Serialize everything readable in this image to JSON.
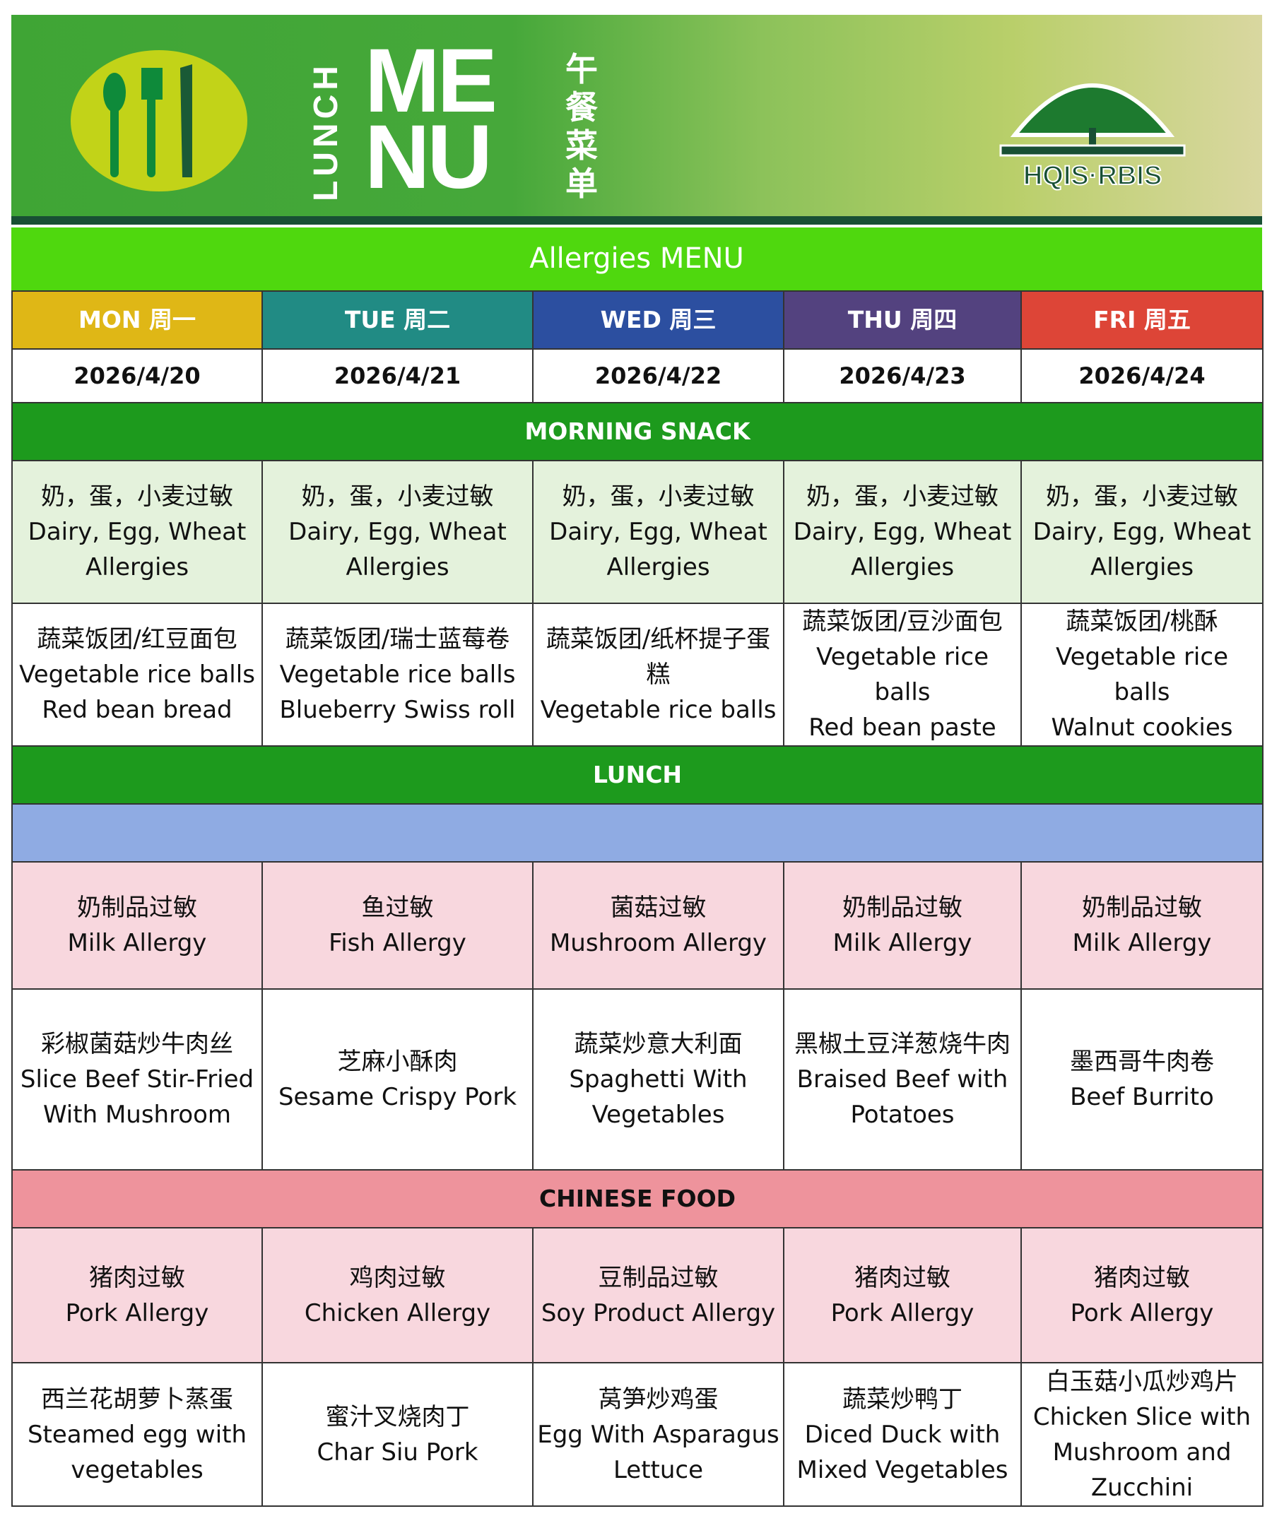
{
  "banner": {
    "lunch": "LUNCH",
    "menu_line1": "ME",
    "menu_line2": "NU",
    "chinese_title": "午餐菜单",
    "logo_text": "HQIS·RBIS"
  },
  "title": "Allergies MENU",
  "days": [
    {
      "label": "MON 周一",
      "date": "2026/4/20",
      "color": "#dfb716"
    },
    {
      "label": "TUE 周二",
      "date": "2026/4/21",
      "color": "#218b84"
    },
    {
      "label": "WED 周三",
      "date": "2026/4/22",
      "color": "#2c4fa0"
    },
    {
      "label": "THU 周四",
      "date": "2026/4/23",
      "color": "#53427f"
    },
    {
      "label": "FRI 周五",
      "date": "2026/4/24",
      "color": "#dd4537"
    }
  ],
  "morning_snack": {
    "title": "MORNING SNACK",
    "allergy": [
      "奶，蛋，小麦过敏\nDairy, Egg, Wheat Allergies",
      "奶，蛋，小麦过敏\nDairy, Egg, Wheat Allergies",
      "奶，蛋，小麦过敏\nDairy, Egg, Wheat Allergies",
      "奶，蛋，小麦过敏\nDairy, Egg, Wheat Allergies",
      "奶，蛋，小麦过敏\nDairy, Egg, Wheat Allergies"
    ],
    "food": [
      "蔬菜饭团/红豆面包\nVegetable rice balls\nRed bean bread",
      "蔬菜饭团/瑞士蓝莓卷\nVegetable rice balls\nBlueberry Swiss roll",
      "蔬菜饭团/纸杯提子蛋糕\nVegetable rice balls",
      "蔬菜饭团/豆沙面包\nVegetable rice balls\nRed bean paste",
      "蔬菜饭团/桃酥\nVegetable rice balls\nWalnut cookies"
    ]
  },
  "lunch": {
    "title": "LUNCH",
    "allergy": [
      "奶制品过敏\nMilk Allergy",
      "鱼过敏\nFish Allergy",
      "菌菇过敏\nMushroom  Allergy",
      "奶制品过敏\nMilk Allergy",
      "奶制品过敏\nMilk Allergy"
    ],
    "food": [
      "彩椒菌菇炒牛肉丝\nSlice Beef  Stir-Fried With Mushroom",
      "芝麻小酥肉\nSesame Crispy Pork",
      "蔬菜炒意大利面\nSpaghetti With Vegetables",
      "黑椒土豆洋葱烧牛肉\nBraised Beef with Potatoes",
      "墨西哥牛肉卷\nBeef Burrito"
    ]
  },
  "chinese_food": {
    "title": "CHINESE FOOD",
    "allergy": [
      "猪肉过敏\nPork Allergy",
      "鸡肉过敏\nChicken Allergy",
      "豆制品过敏\nSoy Product Allergy",
      "猪肉过敏\nPork Allergy",
      "猪肉过敏\nPork Allergy"
    ],
    "food": [
      "西兰花胡萝卜蒸蛋\nSteamed  egg with vegetables",
      "蜜汁叉烧肉丁\nChar Siu Pork",
      "莴笋炒鸡蛋\nEgg With Asparagus Lettuce",
      "蔬菜炒鸭丁\nDiced Duck with Mixed Vegetables",
      "白玉菇小瓜炒鸡片\nChicken Slice with Mushroom and Zucchini"
    ]
  }
}
